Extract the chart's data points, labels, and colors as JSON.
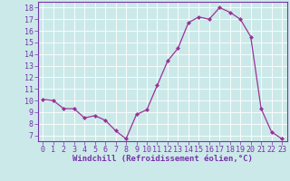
{
  "x": [
    0,
    1,
    2,
    3,
    4,
    5,
    6,
    7,
    8,
    9,
    10,
    11,
    12,
    13,
    14,
    15,
    16,
    17,
    18,
    19,
    20,
    21,
    22,
    23
  ],
  "y": [
    10.1,
    10.0,
    9.3,
    9.3,
    8.5,
    8.7,
    8.3,
    7.4,
    6.7,
    8.8,
    9.2,
    11.3,
    13.4,
    14.5,
    16.7,
    17.2,
    17.0,
    18.0,
    17.6,
    17.0,
    15.5,
    9.3,
    7.3,
    6.7
  ],
  "line_color": "#993399",
  "marker": "D",
  "marker_size": 2.0,
  "bg_color": "#cce9e9",
  "grid_color": "#ffffff",
  "xlabel": "Windchill (Refroidissement éolien,°C)",
  "xlabel_fontsize": 6.5,
  "tick_fontsize": 6.0,
  "ylim": [
    6.5,
    18.5
  ],
  "xlim": [
    -0.5,
    23.5
  ],
  "yticks": [
    7,
    8,
    9,
    10,
    11,
    12,
    13,
    14,
    15,
    16,
    17,
    18
  ],
  "xticks": [
    0,
    1,
    2,
    3,
    4,
    5,
    6,
    7,
    8,
    9,
    10,
    11,
    12,
    13,
    14,
    15,
    16,
    17,
    18,
    19,
    20,
    21,
    22,
    23
  ]
}
